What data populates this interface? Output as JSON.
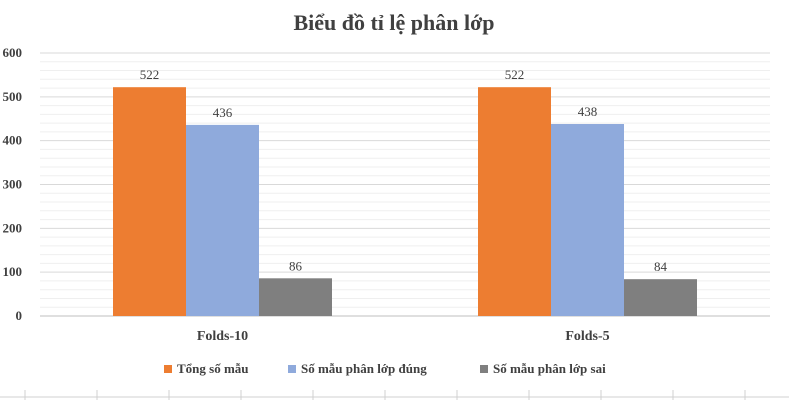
{
  "chart_data": {
    "type": "bar",
    "title": "Biểu đồ tỉ lệ phân lớp",
    "categories": [
      "Folds-10",
      "Folds-5"
    ],
    "series": [
      {
        "name": "Tổng số mẫu",
        "values": [
          522,
          522
        ],
        "color": "#ed7d31"
      },
      {
        "name": "Số mẫu phân lớp đúng",
        "values": [
          436,
          438
        ],
        "color": "#8faadc"
      },
      {
        "name": "Số mẫu phân lớp sai",
        "values": [
          86,
          84
        ],
        "color": "#7f7f7f"
      }
    ],
    "ylim": [
      0,
      600
    ],
    "yticks": [
      0,
      100,
      200,
      300,
      400,
      500,
      600
    ],
    "grid": true,
    "legend": "bottom",
    "xlabel": "",
    "ylabel": ""
  }
}
